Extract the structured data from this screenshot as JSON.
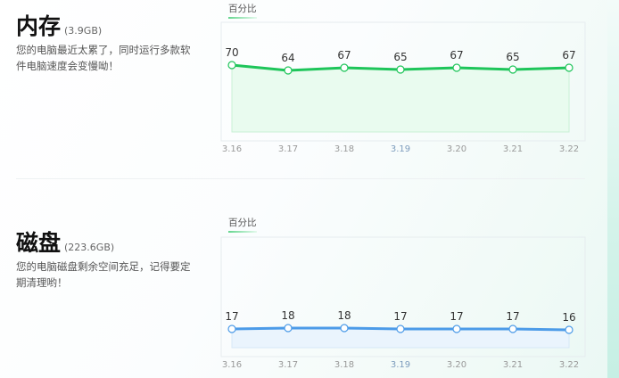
{
  "memory": {
    "title": "内存",
    "size": "(3.9GB)",
    "description": "您的电脑最近太累了，同时运行多款软件电脑速度会变慢呦！",
    "chart_label": "百分比"
  },
  "disk": {
    "title": "磁盘",
    "size": "(223.6GB)",
    "description": "您的电脑磁盘剩余空间充足，记得要定期清理哟！",
    "chart_label": "百分比"
  },
  "chart_data": [
    {
      "type": "area",
      "title": "百分比",
      "categories": [
        "3.16",
        "3.17",
        "3.18",
        "3.19",
        "3.20",
        "3.21",
        "3.22"
      ],
      "values": [
        70,
        64,
        67,
        65,
        67,
        65,
        67
      ],
      "color": "#1ec55a",
      "fill": "#e9fbef",
      "grid": false
    },
    {
      "type": "area",
      "title": "百分比",
      "categories": [
        "3.16",
        "3.17",
        "3.18",
        "3.19",
        "3.20",
        "3.21",
        "3.22"
      ],
      "values": [
        17,
        18,
        18,
        17,
        17,
        17,
        16
      ],
      "color": "#4c9be8",
      "fill": "#eaf4fd",
      "grid": false
    }
  ]
}
